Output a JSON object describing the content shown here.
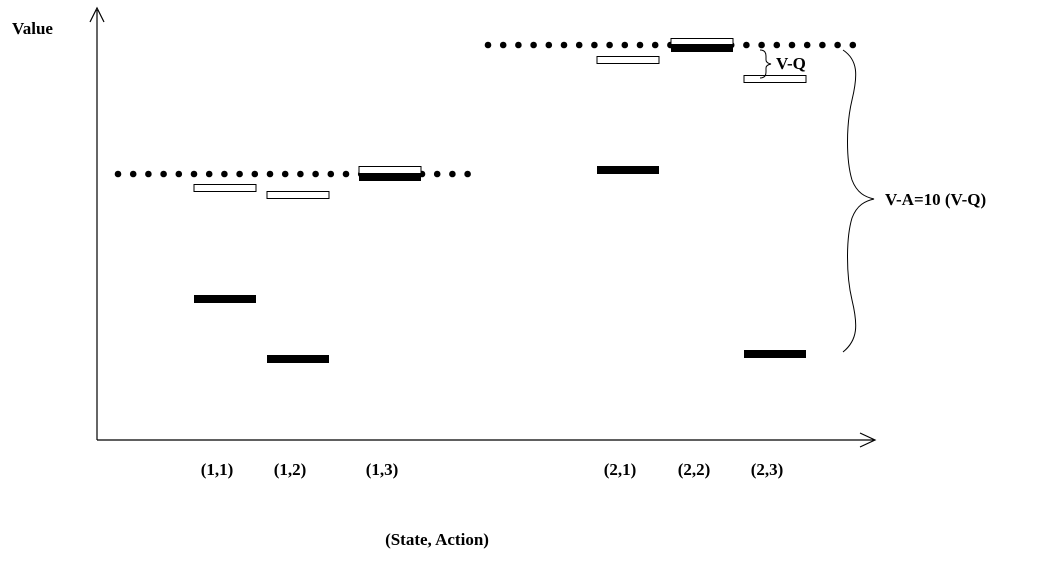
{
  "axes": {
    "y_label": "Value",
    "x_label": "(State, Action)"
  },
  "categories": [
    {
      "label": "(1,1)",
      "state": 1,
      "q_level": "below-v",
      "a_level": "low"
    },
    {
      "label": "(1,2)",
      "state": 1,
      "q_level": "below-v",
      "a_level": "lowest"
    },
    {
      "label": "(1,3)",
      "state": 1,
      "q_level": "at-v",
      "a_level": "at-v"
    },
    {
      "label": "(2,1)",
      "state": 2,
      "q_level": "below-v",
      "a_level": "mid"
    },
    {
      "label": "(2,2)",
      "state": 2,
      "q_level": "at-v",
      "a_level": "at-v"
    },
    {
      "label": "(2,3)",
      "state": 2,
      "q_level": "below-v",
      "a_level": "lowest"
    }
  ],
  "legend": {
    "open_bar": "Q",
    "filled_bar": "A",
    "dotted_line": "V"
  },
  "annotations": {
    "small_brace": "V-Q",
    "large_brace": "V-A=10 (V-Q)"
  },
  "colors": {
    "ink": "#000000",
    "background": "#ffffff"
  }
}
